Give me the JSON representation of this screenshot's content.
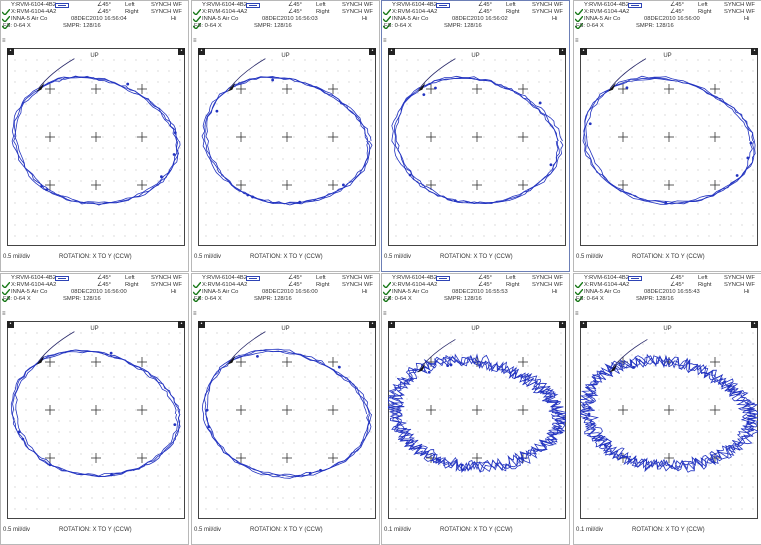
{
  "panels": [
    {
      "probe_x": "Y:RVM-6104-4B2",
      "probe_y": "X:RVM-6104-4A2",
      "angle_x": "∠45°",
      "angle_y": "∠45°",
      "side_x": "Left",
      "side_y": "Right",
      "mode": "SYNCH WF",
      "machine": "INNA-5 Air Co",
      "date": "08DEC2010 16:56:04",
      "fs": "FS: 0-64 X",
      "smpr": "SMPR: 128/16",
      "up": "UP",
      "scale": "0.5 mil/div",
      "rotation": "ROTATION: X TO Y (CCW)",
      "noisy": false
    },
    {
      "probe_x": "Y:RVM-6104-4B2",
      "probe_y": "X:RVM-6104-4A2",
      "angle_x": "∠45°",
      "angle_y": "∠45°",
      "side_x": "Left",
      "side_y": "Right",
      "mode": "SYNCH WF",
      "machine": "INNA-5 Air Co",
      "date": "08DEC2010 16:56:03",
      "fs": "FS: 0-64 X",
      "smpr": "SMPR: 128/16",
      "up": "UP",
      "scale": "0.5 mil/div",
      "rotation": "ROTATION: X TO Y (CCW)",
      "noisy": false
    },
    {
      "probe_x": "Y:RVM-6104-4B2",
      "probe_y": "X:RVM-6104-4A2",
      "angle_x": "∠45°",
      "angle_y": "∠45°",
      "side_x": "Left",
      "side_y": "Right",
      "mode": "SYNCH WF",
      "machine": "INNA-5 Air Co",
      "date": "08DEC2010 16:56:02",
      "fs": "FS: 0-64 X",
      "smpr": "SMPR: 128/16",
      "up": "UP",
      "scale": "0.5 mil/div",
      "rotation": "ROTATION: X TO Y (CCW)",
      "noisy": false
    },
    {
      "probe_x": "Y:RVM-6104-4B2",
      "probe_y": "X:RVM-6104-4A2",
      "angle_x": "∠45°",
      "angle_y": "∠45°",
      "side_x": "Left",
      "side_y": "Right",
      "mode": "SYNCH WF",
      "machine": "INNA-5 Air Co",
      "date": "08DEC2010 16:56:00",
      "fs": "FS: 0-64 X",
      "smpr": "SMPR: 128/16",
      "up": "UP",
      "scale": "0.5 mil/div",
      "rotation": "ROTATION: X TO Y (CCW)",
      "noisy": false
    },
    {
      "probe_x": "Y:RVM-6104-4B2",
      "probe_y": "X:RVM-6104-4A2",
      "angle_x": "∠45°",
      "angle_y": "∠45°",
      "side_x": "Left",
      "side_y": "Right",
      "mode": "SYNCH WF",
      "machine": "INNA-5 Air Co",
      "date": "08DEC2010 16:56:00",
      "fs": "FS: 0-64 X",
      "smpr": "SMPR: 128/16",
      "up": "UP",
      "scale": "0.5 mil/div",
      "rotation": "ROTATION: X TO Y (CCW)",
      "noisy": false
    },
    {
      "probe_x": "Y:RVM-6104-4B2",
      "probe_y": "X:RVM-6104-4A2",
      "angle_x": "∠45°",
      "angle_y": "∠45°",
      "side_x": "Left",
      "side_y": "Right",
      "mode": "SYNCH WF",
      "machine": "INNA-5 Air Co",
      "date": "08DEC2010 16:56:00",
      "fs": "FS: 0-64 X",
      "smpr": "SMPR: 128/16",
      "up": "UP",
      "scale": "0.5 mil/div",
      "rotation": "ROTATION: X TO Y (CCW)",
      "noisy": false
    },
    {
      "probe_x": "Y:RVM-6104-4B2",
      "probe_y": "X:RVM-6104-4A2",
      "angle_x": "∠45°",
      "angle_y": "∠45°",
      "side_x": "Left",
      "side_y": "Right",
      "mode": "SYNCH WF",
      "machine": "INNA-5 Air Co",
      "date": "08DEC2010 16:55:53",
      "fs": "FS: 0-64 X",
      "smpr": "SMPR: 128/16",
      "up": "UP",
      "scale": "0.1 mil/div",
      "rotation": "ROTATION: X TO Y (CCW)",
      "noisy": true
    },
    {
      "probe_x": "Y:RVM-6104-4B2",
      "probe_y": "X:RVM-6104-4A2",
      "angle_x": "∠45°",
      "angle_y": "∠45°",
      "side_x": "Left",
      "side_y": "Right",
      "mode": "SYNCH WF",
      "machine": "INNA-5 Air Co",
      "date": "08DEC2010 16:55:43",
      "fs": "FS: 0-64 X",
      "smpr": "SMPR: 128/16",
      "up": "UP",
      "scale": "0.1 mil/div",
      "rotation": "ROTATION: X TO Y (CCW)",
      "noisy": true
    }
  ],
  "colors": {
    "trace": "#2233c0",
    "grid": "#333333",
    "accent": "#6c7fb6"
  }
}
